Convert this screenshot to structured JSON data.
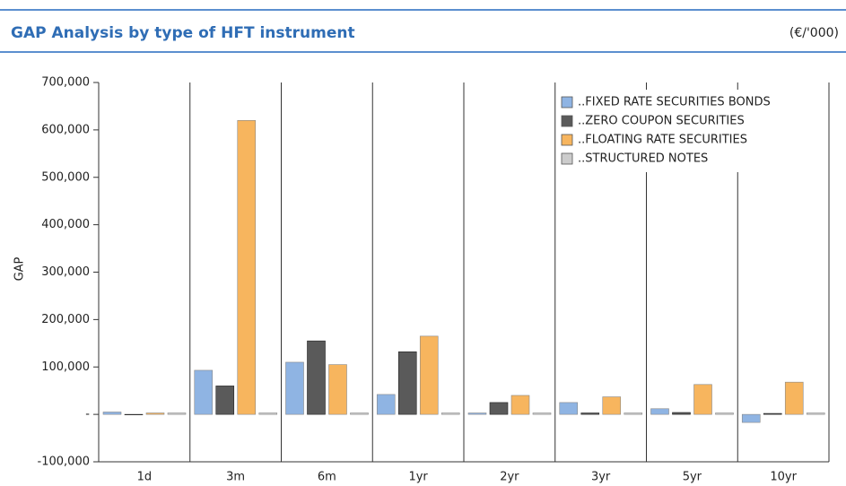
{
  "chart_data": {
    "type": "bar",
    "title": "GAP Analysis by type of HFT instrument",
    "subtitle": "(€/'000)",
    "y_label": "GAP",
    "categories": [
      "1d",
      "3m",
      "6m",
      "1yr",
      "2yr",
      "3yr",
      "5yr",
      "10yr"
    ],
    "series": [
      {
        "name": "..FIXED RATE SECURITIES BONDS",
        "color": "#8fb4e3",
        "values": [
          5000,
          93000,
          110000,
          42000,
          3000,
          25000,
          12000,
          -17000
        ]
      },
      {
        "name": "..ZERO COUPON SECURITIES",
        "color": "#5a5a5a",
        "values": [
          0,
          60000,
          155000,
          132000,
          25000,
          3000,
          4000,
          2000
        ]
      },
      {
        "name": "..FLOATING RATE SECURITIES",
        "color": "#f7b55e",
        "values": [
          3000,
          620000,
          105000,
          165000,
          40000,
          37000,
          63000,
          68000
        ]
      },
      {
        "name": "..STRUCTURED NOTES",
        "color": "#cccccc",
        "values": [
          3000,
          3000,
          3000,
          3000,
          3000,
          3000,
          3000,
          3000
        ]
      }
    ],
    "ylim": [
      -100000,
      700000
    ],
    "yticks": [
      {
        "value": -100000,
        "label": "-100,000"
      },
      {
        "value": 0,
        "label": "-"
      },
      {
        "value": 100000,
        "label": "100,000"
      },
      {
        "value": 200000,
        "label": "200,000"
      },
      {
        "value": 300000,
        "label": "300,000"
      },
      {
        "value": 400000,
        "label": "400,000"
      },
      {
        "value": 500000,
        "label": "500,000"
      },
      {
        "value": 600000,
        "label": "600,000"
      },
      {
        "value": 700000,
        "label": "700,000"
      }
    ],
    "legend": "top-right"
  }
}
